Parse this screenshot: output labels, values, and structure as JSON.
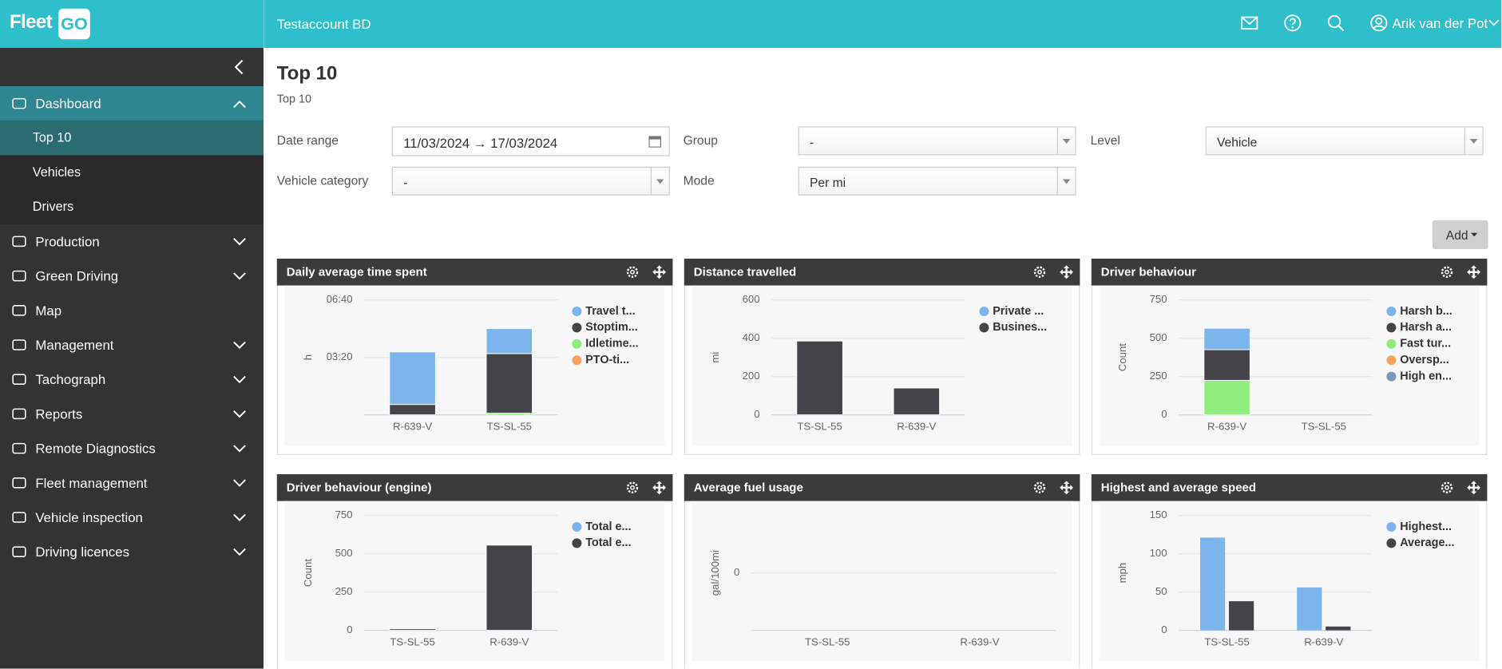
{
  "header": {
    "logo": "Fleet",
    "logo_badge": "GO",
    "account": "Testaccount BD",
    "user": "Arik van der Pot"
  },
  "sidebar": {
    "items": [
      {
        "label": "Dashboard",
        "expanded": true,
        "children": [
          {
            "label": "Top 10",
            "active": true
          },
          {
            "label": "Vehicles"
          },
          {
            "label": "Drivers"
          }
        ]
      },
      {
        "label": "Production",
        "expandable": true
      },
      {
        "label": "Green Driving",
        "expandable": true
      },
      {
        "label": "Map"
      },
      {
        "label": "Management",
        "expandable": true
      },
      {
        "label": "Tachograph",
        "expandable": true
      },
      {
        "label": "Reports",
        "expandable": true
      },
      {
        "label": "Remote Diagnostics",
        "expandable": true
      },
      {
        "label": "Fleet management",
        "expandable": true
      },
      {
        "label": "Vehicle inspection",
        "expandable": true
      },
      {
        "label": "Driving licences",
        "expandable": true
      }
    ]
  },
  "page": {
    "title": "Top 10",
    "subtitle": "Top 10",
    "add_button": "Add"
  },
  "filters": [
    {
      "label": "Date range",
      "value": "11/03/2024 → 17/03/2024",
      "kind": "date"
    },
    {
      "label": "Group",
      "value": "-",
      "kind": "select"
    },
    {
      "label": "Level",
      "value": "Vehicle",
      "kind": "select"
    },
    {
      "label": "Vehicle category",
      "value": "-",
      "kind": "select"
    },
    {
      "label": "Mode",
      "value": "Per mi",
      "kind": "select"
    }
  ],
  "chart_data": [
    {
      "type": "bar",
      "title": "Daily average time spent",
      "stacking": "normal",
      "categories": [
        "R-639-V",
        "TS-SL-55"
      ],
      "y_label": "h",
      "ylim": [
        0,
        6.667
      ],
      "yticks": [
        {
          "value": 3.333,
          "label": "03:20"
        },
        {
          "value": 6.667,
          "label": "06:40"
        }
      ],
      "grid": true,
      "legend": "right",
      "series": [
        {
          "name": "Travel t...",
          "color": "#7cb5ec",
          "values": [
            3.05,
            1.45
          ]
        },
        {
          "name": "Stoptim...",
          "color": "#434348",
          "values": [
            0.6,
            3.45
          ]
        },
        {
          "name": "Idletime...",
          "color": "#90ed7d",
          "values": [
            0,
            0.1
          ]
        },
        {
          "name": "PTO-ti...",
          "color": "#f7a35c",
          "values": [
            0,
            0
          ]
        }
      ]
    },
    {
      "type": "bar",
      "title": "Distance travelled",
      "stacking": "normal",
      "categories": [
        "TS-SL-55",
        "R-639-V"
      ],
      "y_label": "mi",
      "ylim": [
        0,
        600
      ],
      "yticks": [
        0,
        200,
        400,
        600
      ],
      "grid": true,
      "legend": "right",
      "series": [
        {
          "name": "Private ...",
          "color": "#7cb5ec",
          "values": [
            0,
            0
          ]
        },
        {
          "name": "Busines...",
          "color": "#434348",
          "values": [
            385,
            140
          ]
        }
      ]
    },
    {
      "type": "bar",
      "title": "Driver behaviour",
      "stacking": "normal",
      "categories": [
        "R-639-V",
        "TS-SL-55"
      ],
      "y_label": "Count",
      "ylim": [
        0,
        750
      ],
      "yticks": [
        0,
        250,
        500,
        750
      ],
      "grid": true,
      "legend": "right",
      "series": [
        {
          "name": "Harsh b...",
          "color": "#7cb5ec",
          "values": [
            140,
            0
          ]
        },
        {
          "name": "Harsh a...",
          "color": "#434348",
          "values": [
            200,
            0
          ]
        },
        {
          "name": "Fast tur...",
          "color": "#90ed7d",
          "values": [
            225,
            0
          ]
        },
        {
          "name": "Oversp...",
          "color": "#f7a35c",
          "values": [
            0,
            0
          ]
        },
        {
          "name": "High en...",
          "color": "#7798bf",
          "values": [
            0,
            0
          ]
        }
      ]
    },
    {
      "type": "bar",
      "title": "Driver behaviour (engine)",
      "stacking": "normal",
      "categories": [
        "TS-SL-55",
        "R-639-V"
      ],
      "y_label": "Count",
      "ylim": [
        0,
        750
      ],
      "yticks": [
        0,
        250,
        500,
        750
      ],
      "grid": true,
      "legend": "right",
      "series": [
        {
          "name": "Total e...",
          "color": "#7cb5ec",
          "values": [
            0,
            0
          ]
        },
        {
          "name": "Total e...",
          "color": "#434348",
          "values": [
            10,
            556
          ]
        }
      ]
    },
    {
      "type": "bar",
      "title": "Average fuel usage",
      "categories": [
        "TS-SL-55",
        "R-639-V"
      ],
      "y_label": "gal/100mi",
      "ylim": [
        -1,
        1
      ],
      "yticks": [
        0
      ],
      "grid": true,
      "values": [
        0,
        0
      ],
      "color": "#7cb5ec"
    },
    {
      "type": "bar",
      "title": "Highest and average speed",
      "categories": [
        "TS-SL-55",
        "R-639-V"
      ],
      "y_label": "mph",
      "ylim": [
        0,
        150
      ],
      "yticks": [
        0,
        50,
        100,
        150
      ],
      "grid": true,
      "legend": "right",
      "series": [
        {
          "name": "Highest...",
          "color": "#7cb5ec",
          "values": [
            121,
            56
          ]
        },
        {
          "name": "Average...",
          "color": "#434348",
          "values": [
            38,
            5
          ]
        }
      ]
    }
  ]
}
